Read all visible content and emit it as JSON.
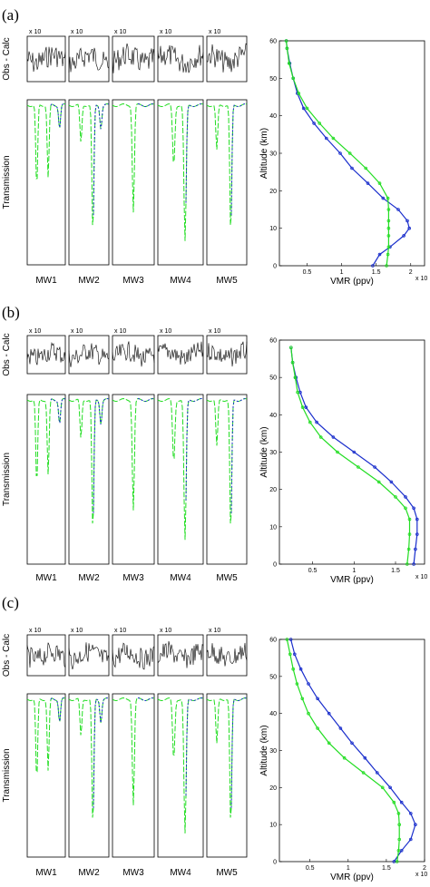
{
  "figure": {
    "colors": {
      "obs": "#22dd22",
      "calc": "#1a2ecc",
      "residual": "#000000",
      "profile_a": "#1a2ecc",
      "profile_b": "#22dd22"
    },
    "panels": [
      {
        "label": "(a)",
        "residual_ylabel": "Obs - Calc",
        "trans_ylabel": "Transmission",
        "mw_labels": [
          "MW1",
          "MW2",
          "MW3",
          "MW4",
          "MW5"
        ],
        "residual_multipliers": [
          "x 10",
          "x 10",
          "x 10",
          "x 10",
          "x 10"
        ],
        "profile": {
          "xlabel": "VMR (ppv)",
          "ylabel": "Altitude (km)",
          "x_multiplier": "x 10"
        }
      },
      {
        "label": "(b)",
        "residual_ylabel": "Obs - Calc",
        "trans_ylabel": "Transmission",
        "mw_labels": [
          "MW1",
          "MW2",
          "MW3",
          "MW4",
          "MW5"
        ],
        "residual_multipliers": [
          "x 10",
          "x 10",
          "x 10",
          "x 10",
          "x 10"
        ],
        "profile": {
          "xlabel": "VMR (ppv)",
          "ylabel": "Altitude (km)",
          "x_multiplier": "x 10"
        }
      },
      {
        "label": "(c)",
        "residual_ylabel": "Obs - Calc",
        "trans_ylabel": "Transmission",
        "mw_labels": [
          "MW1",
          "MW2",
          "MW3",
          "MW4",
          "MW5"
        ],
        "residual_multipliers": [
          "x 10",
          "x 10",
          "x 10",
          "x 10",
          "x 10"
        ],
        "profile": {
          "xlabel": "VMR (ppv)",
          "ylabel": "Altitude (km)",
          "x_multiplier": "x 10"
        }
      }
    ]
  },
  "chart_data": [
    {
      "type": "line",
      "panel": "(a)",
      "title": "",
      "xlabel": "VMR (ppv)",
      "ylabel": "Altitude (km)",
      "xlim": [
        0.1,
        2.2
      ],
      "ylim": [
        0,
        60
      ],
      "xticks": [
        "0.5",
        "1",
        "1.5",
        "2"
      ],
      "yticks": [
        "0",
        "10",
        "20",
        "30",
        "40",
        "50",
        "60"
      ],
      "series": [
        {
          "altitude": [
            0,
            3,
            5,
            8,
            10,
            12,
            15,
            18,
            22,
            26,
            30,
            34,
            38,
            42,
            46,
            50,
            54,
            58,
            60
          ],
          "vmr": [
            1.45,
            1.55,
            1.7,
            1.9,
            1.98,
            1.95,
            1.82,
            1.6,
            1.38,
            1.15,
            0.98,
            0.78,
            0.6,
            0.45,
            0.36,
            0.3,
            0.25,
            0.21,
            0.2
          ]
        },
        {
          "altitude": [
            0,
            3,
            5,
            8,
            10,
            12,
            15,
            18,
            22,
            26,
            30,
            34,
            38,
            42,
            46,
            50,
            54,
            58,
            60
          ],
          "vmr": [
            1.65,
            1.67,
            1.68,
            1.68,
            1.68,
            1.68,
            1.68,
            1.67,
            1.55,
            1.35,
            1.12,
            0.88,
            0.68,
            0.5,
            0.38,
            0.3,
            0.24,
            0.21,
            0.2
          ]
        }
      ]
    },
    {
      "type": "line",
      "panel": "(b)",
      "title": "",
      "xlabel": "VMR (ppv)",
      "ylabel": "Altitude (km)",
      "xlim": [
        0.1,
        1.85
      ],
      "ylim": [
        0,
        60
      ],
      "xticks": [
        "0.5",
        "1",
        "1.5"
      ],
      "yticks": [
        "0",
        "10",
        "20",
        "30",
        "40",
        "50",
        "60"
      ],
      "series": [
        {
          "altitude": [
            0,
            4,
            8,
            12,
            15,
            18,
            22,
            26,
            30,
            34,
            38,
            42,
            46,
            50,
            54,
            58
          ],
          "vmr": [
            1.72,
            1.74,
            1.76,
            1.76,
            1.72,
            1.62,
            1.45,
            1.25,
            1.0,
            0.75,
            0.55,
            0.42,
            0.35,
            0.3,
            0.26,
            0.24
          ]
        },
        {
          "altitude": [
            0,
            4,
            8,
            12,
            15,
            18,
            22,
            26,
            30,
            34,
            38,
            42,
            46,
            50,
            54,
            58
          ],
          "vmr": [
            1.64,
            1.66,
            1.67,
            1.67,
            1.62,
            1.5,
            1.3,
            1.05,
            0.8,
            0.6,
            0.47,
            0.38,
            0.32,
            0.29,
            0.26,
            0.24
          ]
        }
      ]
    },
    {
      "type": "line",
      "panel": "(c)",
      "title": "",
      "xlabel": "VMR (ppv)",
      "ylabel": "Altitude (km)",
      "xlim": [
        0.1,
        2.0
      ],
      "ylim": [
        0,
        60
      ],
      "xticks": [
        "0.5",
        "1",
        "1.5",
        "2"
      ],
      "yticks": [
        "0",
        "10",
        "20",
        "30",
        "40",
        "50",
        "60"
      ],
      "series": [
        {
          "altitude": [
            0,
            3,
            6,
            10,
            13,
            16,
            20,
            24,
            28,
            32,
            36,
            40,
            44,
            48,
            52,
            56,
            60
          ],
          "vmr": [
            1.6,
            1.7,
            1.82,
            1.88,
            1.82,
            1.7,
            1.55,
            1.38,
            1.22,
            1.05,
            0.9,
            0.75,
            0.6,
            0.48,
            0.38,
            0.3,
            0.25
          ]
        },
        {
          "altitude": [
            0,
            3,
            6,
            10,
            13,
            16,
            20,
            24,
            28,
            32,
            36,
            40,
            44,
            48,
            52,
            56,
            60
          ],
          "vmr": [
            1.64,
            1.66,
            1.67,
            1.67,
            1.66,
            1.6,
            1.45,
            1.2,
            0.95,
            0.75,
            0.6,
            0.48,
            0.4,
            0.33,
            0.28,
            0.24,
            0.2
          ]
        }
      ]
    }
  ]
}
